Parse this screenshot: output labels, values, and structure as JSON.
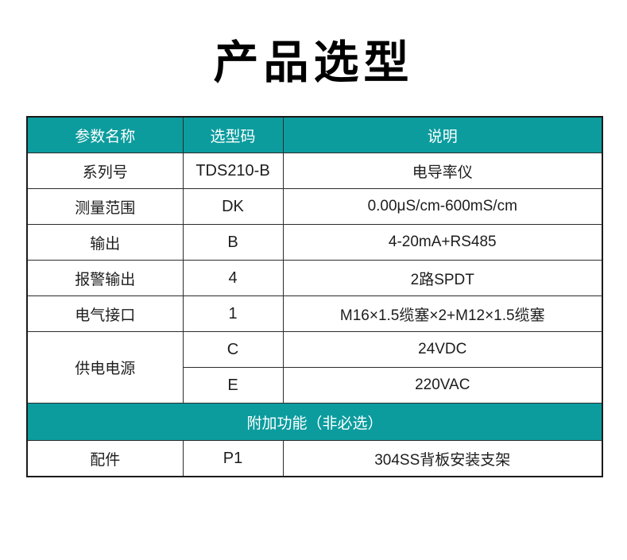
{
  "title": "产品选型",
  "colors": {
    "header_bg": "#0c9c9e",
    "header_text": "#ffffff",
    "body_text": "#1d1d1d",
    "border": "#2b2b2b",
    "page_bg": "#ffffff"
  },
  "table": {
    "headers": [
      "参数名称",
      "选型码",
      "说明"
    ],
    "rows": [
      {
        "param": "系列号",
        "code": "TDS210-B",
        "desc": "电导率仪"
      },
      {
        "param": "测量范围",
        "code": "DK",
        "desc": "0.00μS/cm-600mS/cm"
      },
      {
        "param": "输出",
        "code": "B",
        "desc": "4-20mA+RS485"
      },
      {
        "param": "报警输出",
        "code": "4",
        "desc": "2路SPDT"
      },
      {
        "param": "电气接口",
        "code": "1",
        "desc": "M16×1.5缆塞×2+M12×1.5缆塞"
      }
    ],
    "power": {
      "param": "供电电源",
      "options": [
        {
          "code": "C",
          "desc": "24VDC"
        },
        {
          "code": "E",
          "desc": "220VAC"
        }
      ]
    },
    "section_title": "附加功能（非必选）",
    "accessory": {
      "param": "配件",
      "code": "P1",
      "desc": "304SS背板安装支架"
    }
  }
}
